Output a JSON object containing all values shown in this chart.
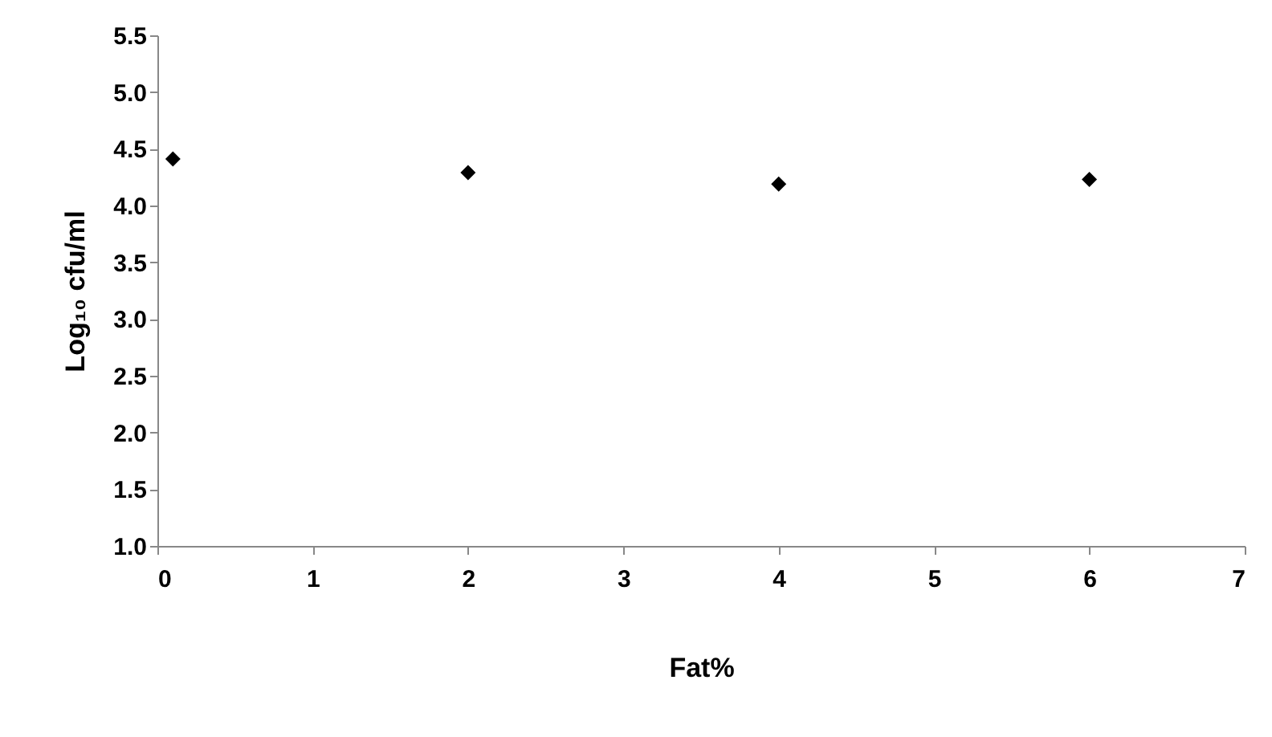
{
  "chart_data": {
    "type": "scatter",
    "xlabel": "Fat%",
    "ylabel": "Log₁₀ cfu/ml",
    "x": [
      0.1,
      2,
      4,
      6
    ],
    "series": [
      {
        "color": "#000000",
        "values": [
          4.41,
          4.29,
          4.19,
          4.23
        ]
      }
    ],
    "marker": "diamond",
    "grid": false,
    "legend": false,
    "xlim": [
      0,
      7
    ],
    "xticks": [
      0,
      1,
      2,
      3,
      4,
      5,
      6,
      7
    ],
    "ylim": [
      1,
      5.5
    ],
    "yticks": [
      {
        "value": 1,
        "label": "1.0"
      },
      1.5,
      {
        "value": 2,
        "label": "2.0"
      },
      2.5,
      {
        "value": 3,
        "label": "3.0"
      },
      3.5,
      {
        "value": 4,
        "label": "4.0"
      },
      4.5,
      {
        "value": 5,
        "label": "5.0"
      },
      5.5
    ]
  }
}
